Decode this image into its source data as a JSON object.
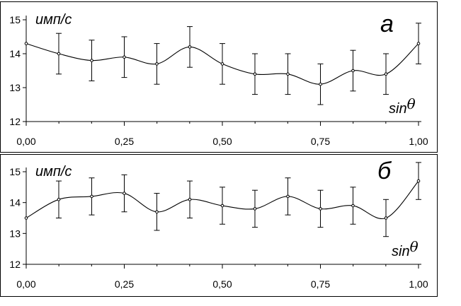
{
  "chart_data": [
    {
      "type": "line",
      "panel_label": "а",
      "ylabel": "имп/с",
      "xlabel": "sin",
      "xlabel_symbol": "θ",
      "x": [
        0.0,
        0.083,
        0.167,
        0.25,
        0.333,
        0.417,
        0.5,
        0.583,
        0.667,
        0.75,
        0.833,
        0.917,
        1.0
      ],
      "series": [
        {
          "values": [
            14.3,
            14.0,
            13.8,
            13.9,
            13.7,
            14.2,
            13.7,
            13.4,
            13.4,
            13.1,
            13.5,
            13.4,
            14.3
          ],
          "error": [
            0.0,
            0.6,
            0.6,
            0.6,
            0.6,
            0.6,
            0.6,
            0.6,
            0.6,
            0.6,
            0.6,
            0.6,
            0.6
          ]
        }
      ],
      "xlim": [
        0,
        1
      ],
      "ylim": [
        12,
        15
      ],
      "xticks": [
        "0,00",
        "0,25",
        "0,50",
        "0,75",
        "1,00"
      ],
      "yticks": [
        "12",
        "13",
        "14",
        "15"
      ],
      "grid": false
    },
    {
      "type": "line",
      "panel_label": "б",
      "ylabel": "имп/с",
      "xlabel": "sin",
      "xlabel_symbol": "θ",
      "x": [
        0.0,
        0.083,
        0.167,
        0.25,
        0.333,
        0.417,
        0.5,
        0.583,
        0.667,
        0.75,
        0.833,
        0.917,
        1.0
      ],
      "series": [
        {
          "values": [
            13.5,
            14.1,
            14.2,
            14.3,
            13.7,
            14.1,
            13.9,
            13.8,
            14.2,
            13.8,
            13.9,
            13.5,
            14.7
          ],
          "error": [
            0.0,
            0.6,
            0.6,
            0.6,
            0.6,
            0.6,
            0.6,
            0.6,
            0.6,
            0.6,
            0.6,
            0.6,
            0.6
          ]
        }
      ],
      "xlim": [
        0,
        1
      ],
      "ylim": [
        12,
        15
      ],
      "xticks": [
        "0,00",
        "0,25",
        "0,50",
        "0,75",
        "1,00"
      ],
      "yticks": [
        "12",
        "13",
        "14",
        "15"
      ],
      "grid": false
    }
  ],
  "colors": {
    "line": "#000000",
    "background": "#ffffff",
    "frame": "#000000"
  }
}
